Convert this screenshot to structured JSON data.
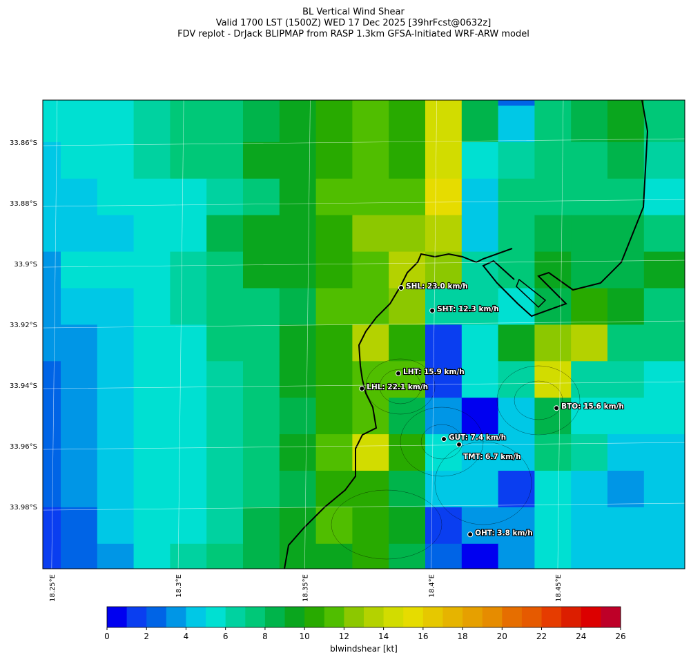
{
  "map": {
    "title": [
      "BL Vertical Wind Shear",
      "Valid 1700 LST (1500Z) WED 17 Dec 2025 [39hrFcst@0632z]",
      "FDV replot - DrJack BLIPMAP from RASP 1.3km GFSA-Initiated WRF-ARW model"
    ],
    "lonlim": [
      18.2465,
      18.5002
    ],
    "latlim": [
      -33.8459,
      -34.0002
    ],
    "xticks": [
      {
        "value": 18.25,
        "label": "18.25°E"
      },
      {
        "value": 18.3,
        "label": "18.3°E"
      },
      {
        "value": 18.35,
        "label": "18.35°E"
      },
      {
        "value": 18.4,
        "label": "18.4°E"
      },
      {
        "value": 18.45,
        "label": "18.45°E"
      }
    ],
    "yticks": [
      {
        "value": -33.86,
        "label": "33.86°S"
      },
      {
        "value": -33.88,
        "label": "33.88°S"
      },
      {
        "value": -33.9,
        "label": "33.9°S"
      },
      {
        "value": -33.92,
        "label": "33.92°S"
      },
      {
        "value": -33.94,
        "label": "33.94°S"
      },
      {
        "value": -33.96,
        "label": "33.96°S"
      },
      {
        "value": -33.98,
        "label": "33.98°S"
      }
    ],
    "grid": [
      [
        5.5,
        5.5,
        5.5,
        6.5,
        7.5,
        7.5,
        8.5,
        9.5,
        10.5,
        11.5,
        10.5,
        14.5,
        8.5,
        2.5,
        7.5,
        8.5,
        9.5,
        7.5
      ],
      [
        5.5,
        5.5,
        5.5,
        6.5,
        7.5,
        7.5,
        8.5,
        9.5,
        10.5,
        11.5,
        10.5,
        14.5,
        8.5,
        4.5,
        7.5,
        8.5,
        9.5,
        7.5
      ],
      [
        4.5,
        5.5,
        5.5,
        6.5,
        7.5,
        7.5,
        9.5,
        9.5,
        10.5,
        11.5,
        10.5,
        14.5,
        5.5,
        6.5,
        7.5,
        7.5,
        8.5,
        6.5
      ],
      [
        4.5,
        4.5,
        5.5,
        5.5,
        5.5,
        6.5,
        7.5,
        9.5,
        11.5,
        11.5,
        11.5,
        15.5,
        4.5,
        7.5,
        7.5,
        7.5,
        7.5,
        5.5
      ],
      [
        4.5,
        4.5,
        4.5,
        5.5,
        5.5,
        8.5,
        9.5,
        9.5,
        10.5,
        12.5,
        12.5,
        13.5,
        4.5,
        7.5,
        8.5,
        8.5,
        8.5,
        7.5
      ],
      [
        3.5,
        5.5,
        5.5,
        5.5,
        6.5,
        7.5,
        9.5,
        9.5,
        10.5,
        11.5,
        13.5,
        12.5,
        6.5,
        7.5,
        9.5,
        8.5,
        8.5,
        9.5
      ],
      [
        3.5,
        4.5,
        4.5,
        5.5,
        6.5,
        7.5,
        7.5,
        8.5,
        11.5,
        11.5,
        12.5,
        6.5,
        6.5,
        5.5,
        8.5,
        10.5,
        9.5,
        7.5
      ],
      [
        3.5,
        3.5,
        4.5,
        5.5,
        5.5,
        7.5,
        7.5,
        9.5,
        10.5,
        13.5,
        10.5,
        1.5,
        5.5,
        9.5,
        12.5,
        13.5,
        7.5,
        7.5
      ],
      [
        2.5,
        3.5,
        4.5,
        5.5,
        5.5,
        6.5,
        7.5,
        9.5,
        10.5,
        11.5,
        11.5,
        1.5,
        5.5,
        6.5,
        14.5,
        6.5,
        6.5,
        5.5
      ],
      [
        2.5,
        3.5,
        4.5,
        5.5,
        5.5,
        6.5,
        7.5,
        8.5,
        10.5,
        11.5,
        8.5,
        3.5,
        0.5,
        4.5,
        8.5,
        5.5,
        5.5,
        5.5
      ],
      [
        2.5,
        3.5,
        4.5,
        5.5,
        5.5,
        6.5,
        7.5,
        9.5,
        11.5,
        14.5,
        10.5,
        5.5,
        4.5,
        4.5,
        7.5,
        6.5,
        4.5,
        4.5
      ],
      [
        2.5,
        3.5,
        4.5,
        5.5,
        5.5,
        6.5,
        7.5,
        8.5,
        10.5,
        10.5,
        8.5,
        4.5,
        4.5,
        1.5,
        5.5,
        4.5,
        3.5,
        4.5
      ],
      [
        1.5,
        2.5,
        4.5,
        5.5,
        5.5,
        6.5,
        8.5,
        9.5,
        11.5,
        10.5,
        9.5,
        1.5,
        3.5,
        3.5,
        5.5,
        4.5,
        4.5,
        4.5
      ],
      [
        1.5,
        2.5,
        3.5,
        5.5,
        6.5,
        7.5,
        8.5,
        9.5,
        9.5,
        10.5,
        8.5,
        2.5,
        0.5,
        3.5,
        5.5,
        4.5,
        4.5,
        4.5
      ]
    ],
    "stations": [
      {
        "label": "SHL: 23.0 km/h",
        "lon": 18.3881,
        "lat": -33.9077
      },
      {
        "label": "SHT: 12.3 km/h",
        "lon": 18.4004,
        "lat": -33.9152
      },
      {
        "label": "LHT: 15.9 km/h",
        "lon": 18.387,
        "lat": -33.9359
      },
      {
        "label": "LHL: 22.1 km/h",
        "lon": 18.3726,
        "lat": -33.9409
      },
      {
        "label": "BTO: 15.6 km/h",
        "lon": 18.4495,
        "lat": -33.9473
      },
      {
        "label": "GUT: 7.4 km/h",
        "lon": 18.405,
        "lat": -33.9575
      },
      {
        "label": "TMT: 6.7 km/h",
        "lon": 18.411,
        "lat": -33.9593
      },
      {
        "label": "OHT: 3.8 km/h",
        "lon": 18.4154,
        "lat": -33.9889
      }
    ],
    "colorbar": {
      "label": "blwindshear [kt]",
      "levels": [
        0,
        1,
        2,
        3,
        4,
        5,
        6,
        7,
        8,
        9,
        10,
        11,
        12,
        13,
        14,
        15,
        16,
        17,
        18,
        19,
        20,
        21,
        22,
        23,
        24,
        25,
        26
      ],
      "colors": [
        "#0000f0",
        "#0a3ef0",
        "#0064e6",
        "#0096e6",
        "#00c8e6",
        "#00e0d2",
        "#00d2a0",
        "#00c878",
        "#00b44b",
        "#0aa61e",
        "#28aa00",
        "#50be00",
        "#8cc800",
        "#b4d200",
        "#d2dc00",
        "#e6dc00",
        "#e6c800",
        "#e6b400",
        "#e6a000",
        "#e68c00",
        "#e66e00",
        "#e65a00",
        "#e63c00",
        "#dc1e00",
        "#dc0000",
        "#be0028"
      ],
      "ticks": [
        0,
        2,
        4,
        6,
        8,
        10,
        12,
        14,
        16,
        18,
        20,
        22,
        24,
        26
      ]
    }
  }
}
